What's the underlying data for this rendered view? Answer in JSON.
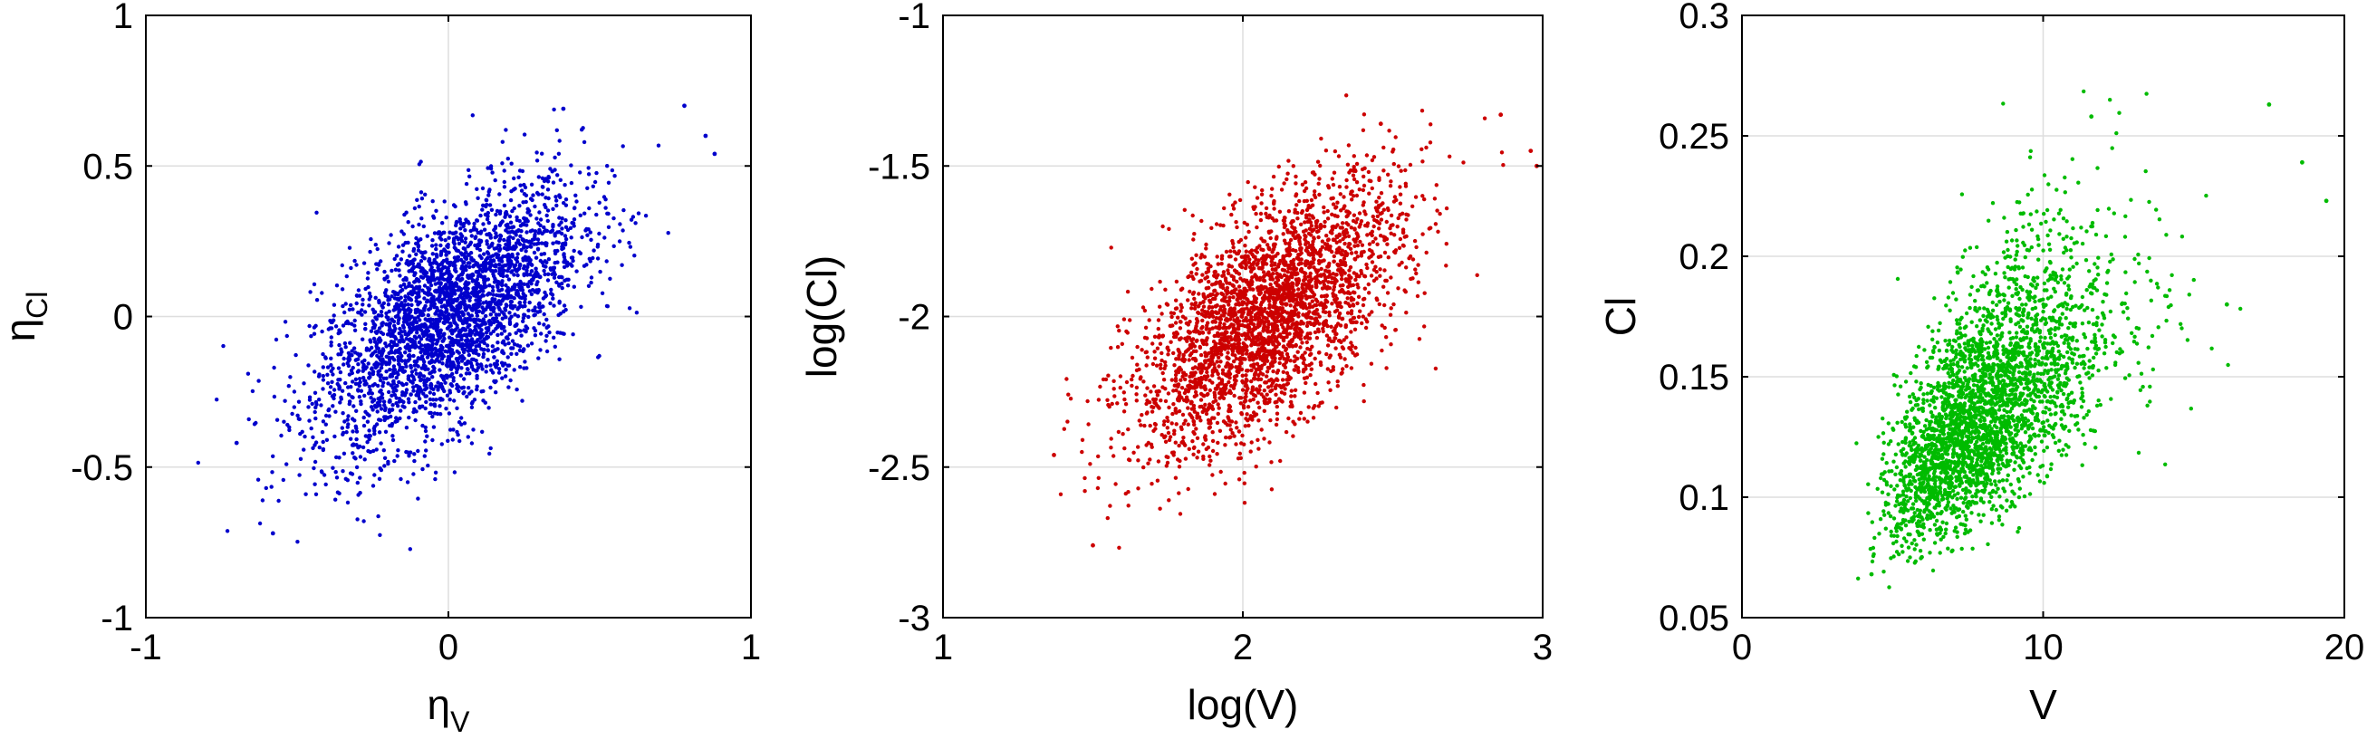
{
  "chart_data": [
    {
      "type": "scatter",
      "xlabel": "η",
      "xlabel_sub": "V",
      "ylabel": "η",
      "ylabel_sub": "Cl",
      "xlim": [
        -1,
        1
      ],
      "ylim": [
        -1,
        1
      ],
      "xticks": [
        "-1",
        "0",
        "1"
      ],
      "yticks": [
        "-1",
        "-0.5",
        "0",
        "0.5",
        "1"
      ],
      "grid": true,
      "color": "#0000cc",
      "series": [
        {
          "points_approx": 3000,
          "center": [
            0,
            0
          ],
          "sd": [
            0.22,
            0.22
          ],
          "correlation": 0.62,
          "notable_points": [
            [
              0.78,
              0.7
            ],
            [
              0.85,
              0.6
            ],
            [
              0.88,
              0.54
            ],
            [
              -0.7,
              -0.42
            ],
            [
              -0.58,
              -0.72
            ],
            [
              0.38,
              0.69
            ]
          ]
        }
      ]
    },
    {
      "type": "scatter",
      "xlabel": "log(V)",
      "xlabel_sub": "",
      "ylabel": "log(Cl)",
      "ylabel_sub": "",
      "xlim": [
        1,
        3
      ],
      "ylim": [
        -3,
        -1
      ],
      "xticks": [
        "1",
        "2",
        "3"
      ],
      "yticks": [
        "-3",
        "-2.5",
        "-2",
        "-1.5",
        "-1"
      ],
      "grid": true,
      "color": "#cc0000",
      "series": [
        {
          "points_approx": 3000,
          "center": [
            2.08,
            -2.0
          ],
          "sd": [
            0.22,
            0.22
          ],
          "correlation": 0.62,
          "notable_points": [
            [
              2.86,
              -1.33
            ],
            [
              2.96,
              -1.45
            ],
            [
              2.98,
              -1.5
            ],
            [
              1.37,
              -2.46
            ],
            [
              1.5,
              -2.76
            ],
            [
              2.46,
              -1.36
            ]
          ]
        }
      ]
    },
    {
      "type": "scatter",
      "xlabel": "V",
      "xlabel_sub": "",
      "ylabel": "Cl",
      "ylabel_sub": "",
      "xlim": [
        0,
        20
      ],
      "ylim": [
        0.05,
        0.3
      ],
      "xticks": [
        "0",
        "10",
        "20"
      ],
      "yticks": [
        "0.05",
        "0.1",
        "0.15",
        "0.2",
        "0.25",
        "0.3"
      ],
      "grid": true,
      "color": "#00bb00",
      "series": [
        {
          "points_approx": 3000,
          "center": [
            8.0,
            0.135
          ],
          "log_sd": [
            0.22,
            0.22
          ],
          "correlation": 0.62,
          "notable_points": [
            [
              17.5,
              0.263
            ],
            [
              18.6,
              0.239
            ],
            [
              19.4,
              0.223
            ],
            [
              11.6,
              0.258
            ],
            [
              16.1,
              0.18
            ],
            [
              4.3,
              0.068
            ]
          ]
        }
      ]
    }
  ]
}
